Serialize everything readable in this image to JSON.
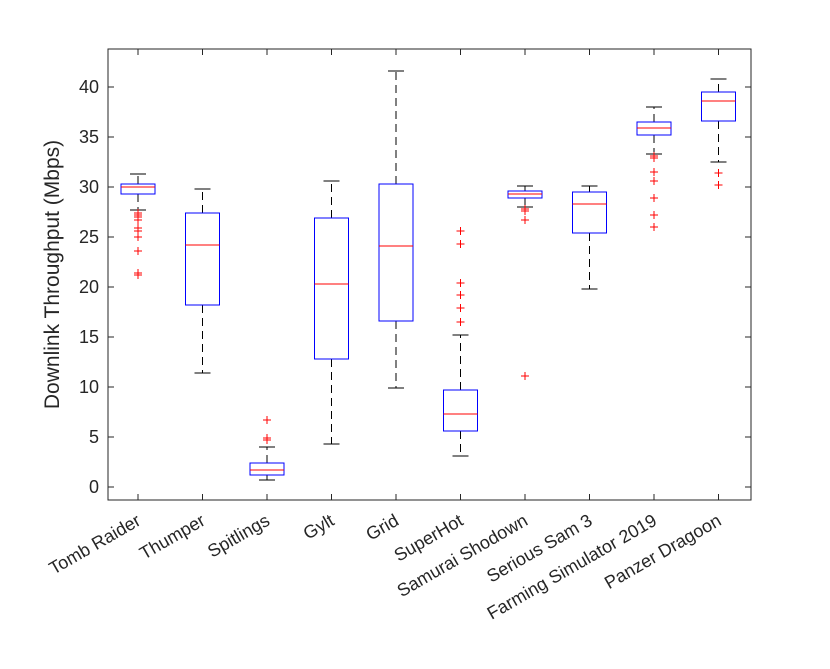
{
  "chart_data": {
    "type": "box",
    "title": "",
    "xlabel": "",
    "ylabel": "Downlink Throughput (Mbps)",
    "ylim": [
      -1.3,
      43.8
    ],
    "yticks": [
      0,
      5,
      10,
      15,
      20,
      25,
      30,
      35,
      40
    ],
    "grid": false,
    "colors": {
      "box": "#0000ff",
      "median": "#ff0000",
      "whisker": "#000000",
      "outlier": "#ff0000",
      "axis": "#262626"
    },
    "categories": [
      "Tomb Raider",
      "Thumper",
      "Spitlings",
      "Gylt",
      "Grid",
      "SuperHot",
      "Samurai Shodown",
      "Serious Sam 3",
      "Farming Simulator 2019",
      "Panzer Dragoon"
    ],
    "boxes": [
      {
        "name": "Tomb Raider",
        "whisker_low": 27.7,
        "q1": 29.3,
        "median": 30.0,
        "q3": 30.3,
        "whisker_high": 31.3,
        "outliers": [
          27.4,
          27.2,
          27.0,
          26.7,
          25.9,
          25.6,
          25.0,
          23.6,
          21.4,
          21.2
        ]
      },
      {
        "name": "Thumper",
        "whisker_low": 11.4,
        "q1": 18.2,
        "median": 24.2,
        "q3": 27.4,
        "whisker_high": 29.8,
        "outliers": []
      },
      {
        "name": "Spitlings",
        "whisker_low": 0.7,
        "q1": 1.2,
        "median": 1.7,
        "q3": 2.4,
        "whisker_high": 4.0,
        "outliers": [
          4.7,
          4.9,
          6.7
        ]
      },
      {
        "name": "Gylt",
        "whisker_low": 4.3,
        "q1": 12.8,
        "median": 20.3,
        "q3": 26.9,
        "whisker_high": 30.6,
        "outliers": []
      },
      {
        "name": "Grid",
        "whisker_low": 9.9,
        "q1": 16.6,
        "median": 24.1,
        "q3": 30.3,
        "whisker_high": 41.6,
        "outliers": []
      },
      {
        "name": "SuperHot",
        "whisker_low": 3.1,
        "q1": 5.6,
        "median": 7.3,
        "q3": 9.7,
        "whisker_high": 15.2,
        "outliers": [
          16.5,
          17.9,
          19.2,
          20.4,
          24.3,
          25.6
        ]
      },
      {
        "name": "Samurai Shodown",
        "whisker_low": 28.0,
        "q1": 28.9,
        "median": 29.3,
        "q3": 29.6,
        "whisker_high": 30.1,
        "outliers": [
          27.8,
          27.6,
          26.7,
          11.1
        ]
      },
      {
        "name": "Serious Sam 3",
        "whisker_low": 19.8,
        "q1": 25.4,
        "median": 28.3,
        "q3": 29.5,
        "whisker_high": 30.1,
        "outliers": []
      },
      {
        "name": "Farming Simulator 2019",
        "whisker_low": 33.3,
        "q1": 35.2,
        "median": 35.9,
        "q3": 36.5,
        "whisker_high": 38.0,
        "outliers": [
          33.1,
          32.9,
          31.5,
          30.6,
          28.9,
          27.2,
          26.0
        ]
      },
      {
        "name": "Panzer Dragoon",
        "whisker_low": 32.5,
        "q1": 36.6,
        "median": 38.6,
        "q3": 39.5,
        "whisker_high": 40.8,
        "outliers": [
          31.4,
          30.2
        ]
      }
    ]
  }
}
